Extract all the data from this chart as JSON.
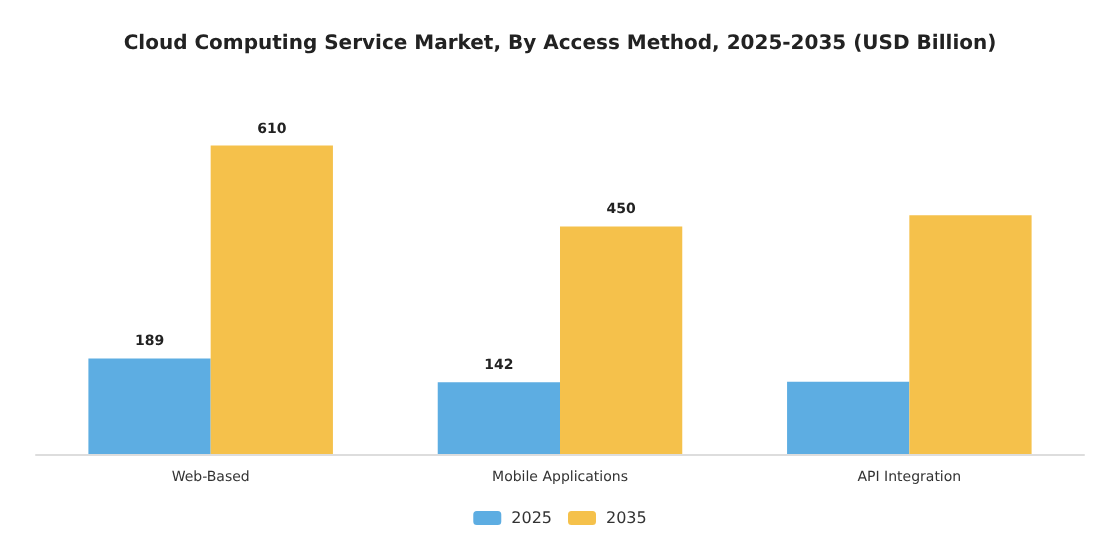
{
  "chart_data": {
    "type": "bar",
    "title": "Cloud Computing Service Market, By Access Method, 2025-2035 (USD Billion)",
    "categories": [
      "Web-Based",
      "Mobile Applications",
      "API Integration"
    ],
    "series": [
      {
        "name": "2025",
        "color": "#5dade2",
        "values": [
          189,
          142,
          143
        ],
        "value_labels": [
          "189",
          "142",
          null
        ]
      },
      {
        "name": "2035",
        "color": "#f5c14b",
        "values": [
          610,
          450,
          472
        ],
        "value_labels": [
          "610",
          "450",
          null
        ]
      }
    ],
    "legend": "bottom"
  }
}
